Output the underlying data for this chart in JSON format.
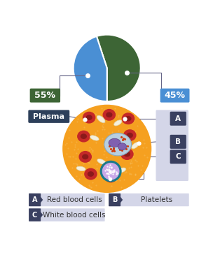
{
  "pie_values": [
    55,
    45
  ],
  "pie_colors": [
    "#3d6535",
    "#4a8fd4"
  ],
  "pie_labels": [
    "55%",
    "45%"
  ],
  "plasma_label": "Plasma",
  "plasma_label_bg": "#2d3f5a",
  "bg_color": "#ffffff",
  "cell_bg": "#f5a020",
  "cell_dot_color": "#f8c060",
  "rbc_color": "#c42828",
  "rbc_inner_color": "#8b1a1a",
  "platelet_color": "#f5f0dc",
  "platelet_edge": "#ddd5b0",
  "wbc_body_color": "#b8cfe0",
  "wbc_body_edge": "#8aaac0",
  "wbc_nucleus_color": "#8060b0",
  "wbc_nucleus_edge": "#5a4080",
  "wbc_granule_color": "#d04010",
  "lymph_outer_color": "#1a7a8a",
  "lymph_inner_color": "#c8a8e8",
  "lymph_dot_color": "#9878c8",
  "legend_bg": "#d4d6e8",
  "legend_label_bg": "#3a4060",
  "sidebar_bg": "#d4d6e8",
  "sidebar_label_bg": "#3a4060",
  "line_color": "#666688",
  "legend_items": [
    {
      "letter": "A",
      "text": "Red blood cells"
    },
    {
      "letter": "B",
      "text": "Platelets"
    },
    {
      "letter": "C",
      "text": "White blood cells"
    }
  ]
}
